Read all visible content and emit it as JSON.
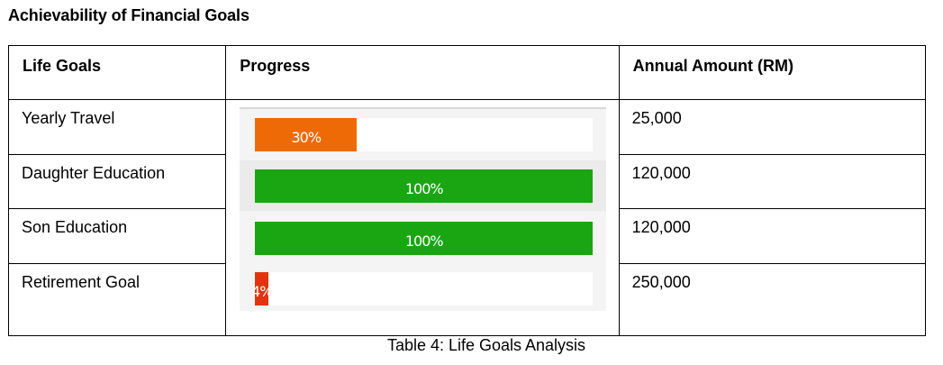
{
  "heading": "Achievability of Financial Goals",
  "table": {
    "headers": {
      "goal": "Life Goals",
      "progress": "Progress",
      "amount": "Annual Amount (RM)"
    },
    "rows": [
      {
        "goal": "Yearly Travel",
        "progress_label": "30%",
        "progress": 0.3,
        "amount": "25,000",
        "color": "#ee6a07"
      },
      {
        "goal": "Daughter Education",
        "progress_label": "100%",
        "progress": 1.0,
        "amount": "120,000",
        "color": "#1aa512"
      },
      {
        "goal": "Son Education",
        "progress_label": "100%",
        "progress": 1.0,
        "amount": "120,000",
        "color": "#1aa512"
      },
      {
        "goal": "Retirement Goal",
        "progress_label": "4%",
        "progress": 0.04,
        "amount": "250,000",
        "color": "#e0340e"
      }
    ]
  },
  "caption": "Table 4: Life Goals Analysis"
}
